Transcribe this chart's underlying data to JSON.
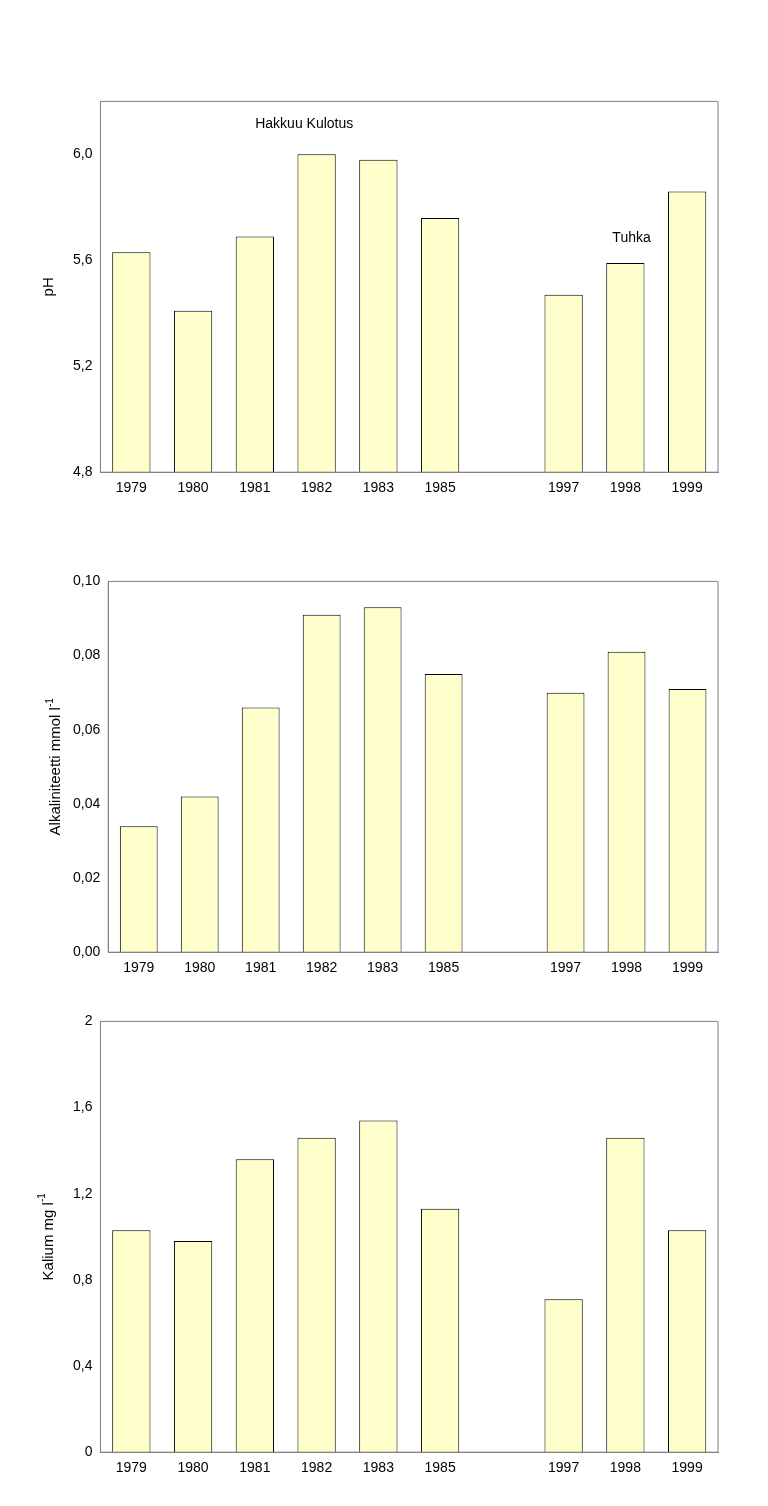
{
  "chart_data": [
    {
      "type": "bar",
      "ylabel": "pH",
      "categories": [
        "1979",
        "1980",
        "1981",
        "1982",
        "1983",
        "1985",
        null,
        "1997",
        "1998",
        "1999"
      ],
      "series": [
        {
          "color": "#ffffcc",
          "values": [
            5.63,
            5.41,
            5.69,
            6.0,
            5.98,
            5.76,
            null,
            5.47,
            5.59,
            5.86
          ]
        }
      ],
      "ylim": [
        4.8,
        6.2
      ],
      "yticks": [
        {
          "value": 4.8,
          "label": "4,8"
        },
        {
          "value": 5.2,
          "label": "5,2"
        },
        {
          "value": 5.6,
          "label": "5,6"
        },
        {
          "value": 6.0,
          "label": "6,0"
        }
      ],
      "annotations": [
        "Hakkuu Kulotus",
        "Tuhka"
      ],
      "grid": false,
      "legend": false
    },
    {
      "type": "bar",
      "ylabel": "Alkaliniteetti mmol l$^{-1}$",
      "categories": [
        "1979",
        "1980",
        "1981",
        "1982",
        "1983",
        "1985",
        null,
        "1997",
        "1998",
        "1999"
      ],
      "series": [
        {
          "color": "#ffffcc",
          "values": [
            0.034,
            0.042,
            0.066,
            0.091,
            0.093,
            0.075,
            null,
            0.07,
            0.081,
            0.071
          ]
        }
      ],
      "ylim": [
        0,
        0.1
      ],
      "yticks": [
        {
          "value": 0,
          "label": "0,00"
        },
        {
          "value": 0.02,
          "label": "0,02"
        },
        {
          "value": 0.04,
          "label": "0,04"
        },
        {
          "value": 0.06,
          "label": "0,06"
        },
        {
          "value": 0.08,
          "label": "0,08"
        },
        {
          "value": 0.1,
          "label": "0,10"
        }
      ],
      "grid": false,
      "legend": false
    },
    {
      "type": "bar",
      "ylabel": "Kalium mg l$^{-1}$",
      "categories": [
        "1979",
        "1980",
        "1981",
        "1982",
        "1983",
        "1985",
        null,
        "1997",
        "1998",
        "1999"
      ],
      "series": [
        {
          "color": "#ffffcc",
          "values": [
            1.03,
            0.98,
            1.36,
            1.46,
            1.54,
            1.13,
            null,
            0.71,
            1.46,
            1.03
          ]
        }
      ],
      "ylim": [
        0,
        2
      ],
      "yticks": [
        0,
        {
          "value": 0.4,
          "label": "0,4"
        },
        {
          "value": 0.8,
          "label": "0,8"
        },
        {
          "value": 1.2,
          "label": "1,2"
        },
        {
          "value": 1.6,
          "label": "1,6"
        },
        2
      ],
      "grid": false,
      "legend": false
    }
  ]
}
